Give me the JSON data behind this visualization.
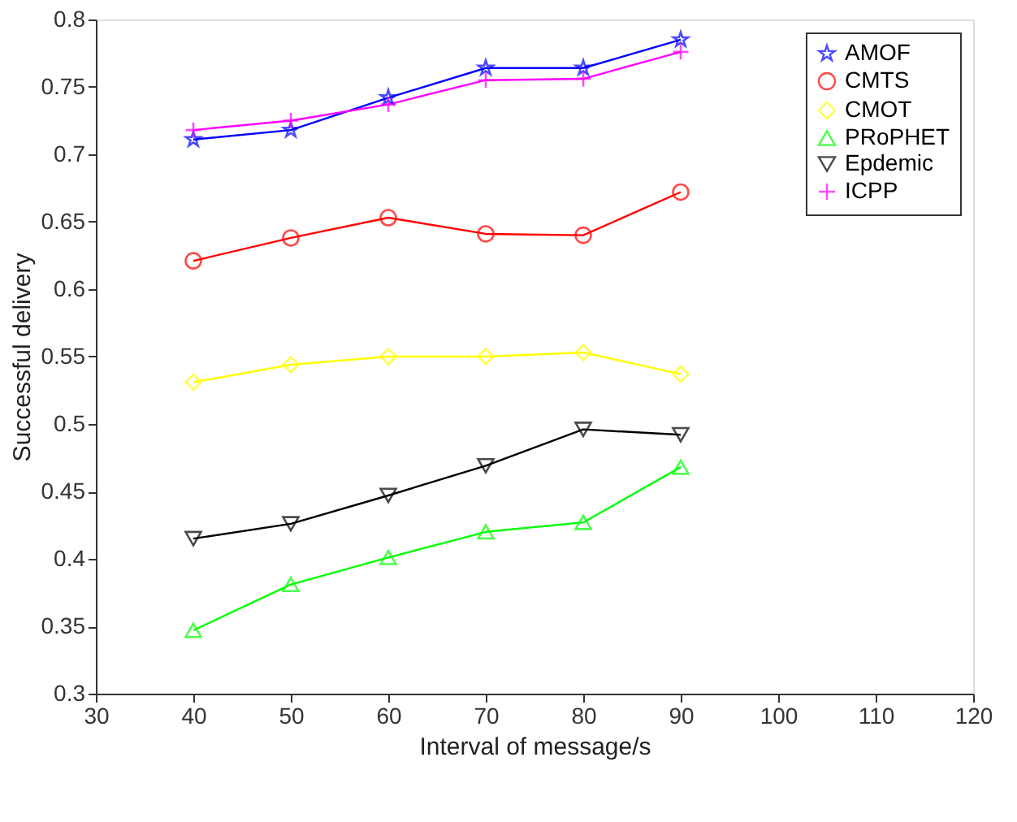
{
  "chart_data": {
    "type": "line",
    "xlabel": "Interval of message/s",
    "ylabel": "Successful delivery",
    "x": [
      40,
      50,
      60,
      70,
      80,
      90
    ],
    "xlim": [
      30,
      120
    ],
    "xticks": [
      30,
      40,
      50,
      60,
      70,
      80,
      90,
      100,
      110,
      120
    ],
    "ylim": [
      0.3,
      0.8
    ],
    "yticks": [
      0.3,
      0.35,
      0.4,
      0.45,
      0.5,
      0.55,
      0.6,
      0.65,
      0.7,
      0.75,
      0.8
    ],
    "grid": false,
    "legend": "top right",
    "line_style": "solid",
    "series": [
      {
        "name": "AMOF",
        "color": "#0000ff",
        "marker": "star",
        "values": [
          0.711,
          0.718,
          0.742,
          0.764,
          0.764,
          0.785
        ]
      },
      {
        "name": "CMTS",
        "color": "#ff0000",
        "marker": "circle",
        "values": [
          0.621,
          0.638,
          0.653,
          0.641,
          0.64,
          0.672
        ]
      },
      {
        "name": "CMOT",
        "color": "#ffff00",
        "marker": "diamond",
        "values": [
          0.531,
          0.544,
          0.55,
          0.55,
          0.553,
          0.537
        ]
      },
      {
        "name": "PRoPHET",
        "color": "#00ff00",
        "marker": "triangle",
        "values": [
          0.347,
          0.381,
          0.401,
          0.42,
          0.427,
          0.468
        ]
      },
      {
        "name": "Epdemic",
        "color": "#000000",
        "marker": "triangle-down",
        "values": [
          0.415,
          0.426,
          0.447,
          0.469,
          0.496,
          0.492
        ]
      },
      {
        "name": "ICPP",
        "color": "#ff00ff",
        "marker": "cross",
        "values": [
          0.718,
          0.725,
          0.737,
          0.755,
          0.756,
          0.776
        ]
      }
    ]
  }
}
